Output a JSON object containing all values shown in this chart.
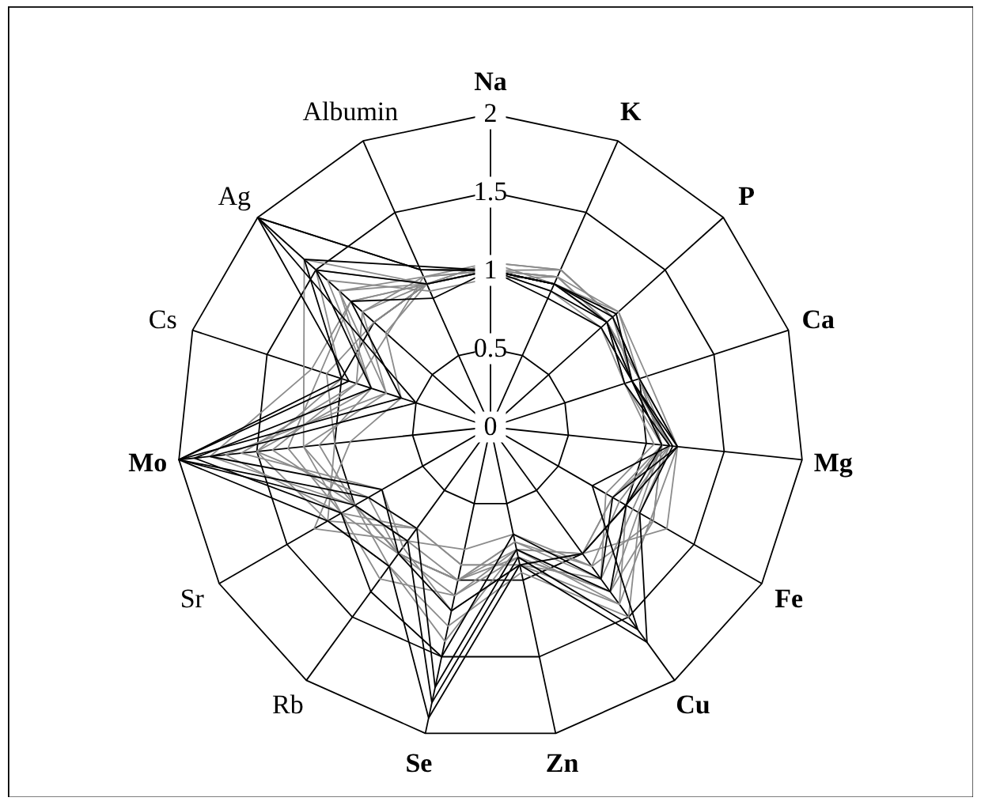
{
  "chart_data": {
    "type": "radar",
    "categories": [
      "Na",
      "K",
      "P",
      "Ca",
      "Mg",
      "Fe",
      "Cu",
      "Zn",
      "Se",
      "Rb",
      "Sr",
      "Mo",
      "Cs",
      "Ag",
      "Albumin"
    ],
    "ylim": [
      0,
      2
    ],
    "yticks": [
      0,
      0.5,
      1,
      1.5,
      2
    ],
    "grid": true,
    "series": [
      {
        "color": "#8c8c8c",
        "values": [
          1.0,
          1.05,
          1.0,
          0.95,
          1.15,
          0.9,
          1.0,
          0.8,
          1.0,
          0.9,
          1.0,
          1.4,
          0.9,
          1.1,
          1.0
        ]
      },
      {
        "color": "#8c8c8c",
        "values": [
          1.05,
          1.1,
          1.05,
          1.0,
          1.1,
          1.2,
          1.3,
          0.85,
          1.1,
          1.0,
          1.1,
          1.2,
          0.7,
          1.3,
          1.05
        ]
      },
      {
        "color": "#8c8c8c",
        "values": [
          1.0,
          1.0,
          1.1,
          1.0,
          1.2,
          null,
          1.4,
          0.9,
          0.9,
          0.8,
          1.2,
          1.0,
          1.1,
          1.0,
          1.0
        ]
      },
      {
        "color": "#8c8c8c",
        "values": [
          0.95,
          1.05,
          1.0,
          0.9,
          1.1,
          null,
          1.2,
          0.75,
          1.0,
          1.0,
          0.9,
          1.5,
          0.8,
          1.4,
          0.95
        ]
      },
      {
        "color": "#8c8c8c",
        "values": [
          1.0,
          1.1,
          1.05,
          0.95,
          1.15,
          1.1,
          1.5,
          0.95,
          1.3,
          1.1,
          1.0,
          1.8,
          1.2,
          1.2,
          1.0
        ]
      },
      {
        "color": "#8c8c8c",
        "values": [
          1.05,
          1.0,
          1.0,
          1.0,
          1.1,
          0.95,
          1.1,
          0.7,
          0.8,
          0.9,
          1.3,
          0.9,
          0.6,
          0.9,
          1.0
        ]
      },
      {
        "color": "#8c8c8c",
        "values": [
          1.0,
          1.05,
          1.1,
          1.05,
          1.2,
          1.3,
          1.0,
          0.8,
          1.1,
          1.2,
          1.1,
          1.3,
          null,
          1.2,
          1.0
        ]
      },
      {
        "color": "#8c8c8c",
        "values": [
          1.0,
          0.95,
          0.95,
          0.9,
          1.05,
          0.85,
          1.2,
          0.9,
          1.2,
          0.95,
          0.8,
          1.6,
          0.9,
          null,
          1.05
        ]
      },
      {
        "color": "#8c8c8c",
        "values": [
          1.0,
          1.0,
          1.0,
          0.95,
          1.1,
          null,
          1.3,
          0.85,
          1.0,
          1.0,
          1.0,
          1.1,
          0.8,
          1.3,
          1.0
        ]
      },
      {
        "color": "#8c8c8c",
        "values": [
          1.05,
          1.1,
          1.05,
          1.0,
          1.15,
          1.0,
          1.4,
          0.8,
          1.4,
          1.1,
          1.2,
          1.5,
          1.0,
          1.5,
          1.0
        ]
      },
      {
        "color": "#8c8c8c",
        "values": [
          1.0,
          1.0,
          1.0,
          0.95,
          1.1,
          0.9,
          1.0,
          0.9,
          0.9,
          0.8,
          1.1,
          1.7,
          0.7,
          1.1,
          1.05
        ]
      },
      {
        "color": "#8c8c8c",
        "values": [
          1.0,
          1.05,
          1.0,
          1.0,
          1.1,
          1.2,
          1.1,
          0.75,
          1.0,
          1.0,
          1.0,
          1.2,
          null,
          1.6,
          1.0
        ]
      },
      {
        "color": "#000000",
        "values": [
          1.0,
          1.0,
          1.08,
          0.95,
          1.17,
          1.1,
          1.7,
          0.9,
          1.9,
          1.1,
          1.2,
          2.0,
          0.95,
          2.0,
          1.1
        ]
      },
      {
        "color": "#000000",
        "values": [
          1.0,
          0.95,
          1.0,
          0.9,
          1.15,
          0.75,
          1.6,
          0.85,
          1.8,
          0.9,
          1.0,
          2.0,
          0.6,
          1.2,
          0.9
        ]
      },
      {
        "color": "#000000",
        "values": [
          1.0,
          1.0,
          1.05,
          1.0,
          1.2,
          0.9,
          1.2,
          0.7,
          1.5,
          1.3,
          1.1,
          1.9,
          0.8,
          1.5,
          1.0
        ]
      },
      {
        "color": "#000000",
        "values": [
          1.0,
          0.9,
          0.95,
          0.95,
          1.1,
          1.0,
          1.3,
          0.8,
          1.7,
          0.8,
          0.9,
          2.0,
          1.0,
          1.6,
          null
        ]
      },
      {
        "color": "#000000",
        "values": [
          1.0,
          1.0,
          1.0,
          0.95,
          1.2,
          null,
          1.0,
          0.9,
          1.2,
          1.0,
          0.8,
          1.8,
          0.5,
          2.0,
          1.1
        ]
      }
    ]
  }
}
